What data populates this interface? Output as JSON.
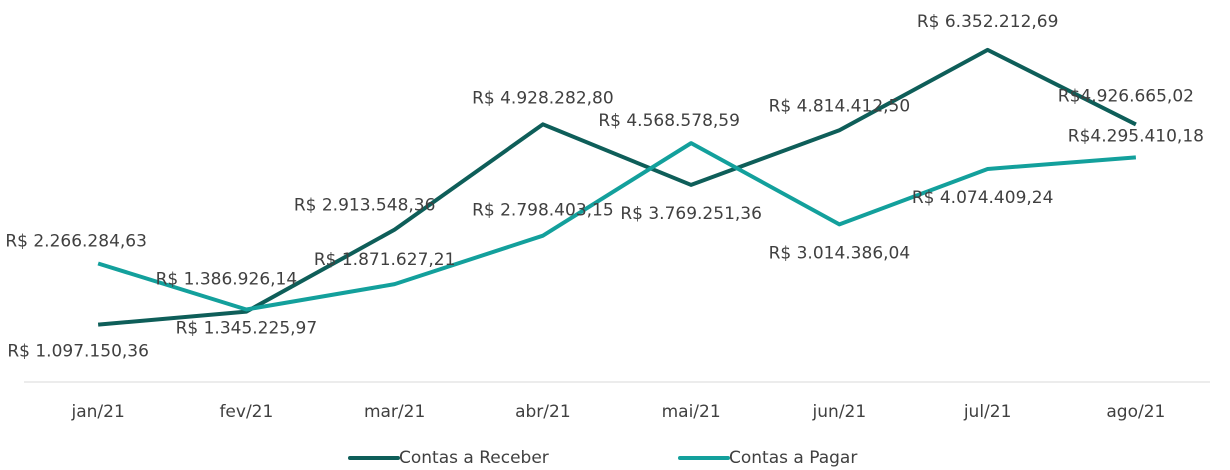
{
  "chart_data": {
    "type": "line",
    "categories": [
      "jan/21",
      "fev/21",
      "mar/21",
      "abr/21",
      "mai/21",
      "jun/21",
      "jul/21",
      "ago/21"
    ],
    "ylim": [
      0,
      7000000
    ],
    "legend": "bottom",
    "series": [
      {
        "name": "Contas a Receber",
        "color": "#0e5e59",
        "values": [
          1097150.36,
          1345225.97,
          2913548.36,
          4928282.8,
          3769251.36,
          4814412.5,
          6352212.69,
          4926665.02
        ],
        "value_labels": [
          "R$ 1.097.150,36",
          "R$ 1.345.225,97",
          "R$ 2.913.548,36",
          "R$ 4.928.282,80",
          "R$ 3.769.251,36",
          "R$ 4.814.412,50",
          "R$ 6.352.212,69",
          "R$4.926.665,02"
        ]
      },
      {
        "name": "Contas a Pagar",
        "color": "#13a09c",
        "values": [
          2266284.63,
          1386926.14,
          1871627.21,
          2798403.15,
          4568578.59,
          3014386.04,
          4074409.24,
          4295410.18
        ],
        "value_labels": [
          "R$ 2.266.284,63",
          "R$ 1.386.926,14",
          "R$ 1.871.627,21",
          "R$ 2.798.403,15",
          "R$ 4.568.578,59",
          "R$ 3.014.386,04",
          "R$ 4.074.409,24",
          "R$4.295.410,18"
        ]
      }
    ]
  }
}
